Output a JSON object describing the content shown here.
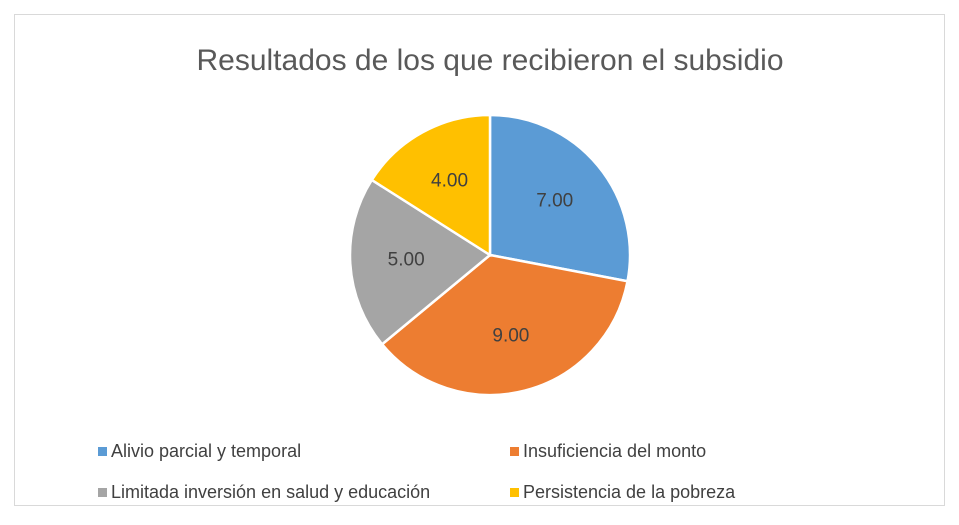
{
  "chart_data": {
    "type": "pie",
    "title": "Resultados de los que recibieron el subsidio",
    "categories": [
      "Alivio parcial y temporal",
      "Insuficiencia del monto",
      "Limitada inversión en salud y educación",
      "Persistencia de la pobreza"
    ],
    "values": [
      7,
      9,
      5,
      4
    ],
    "value_labels": [
      "7.00",
      "9.00",
      "5.00",
      "4.00"
    ],
    "colors": [
      "#5b9bd5",
      "#ed7d31",
      "#a5a5a5",
      "#ffc000"
    ],
    "legend": "bottom"
  }
}
